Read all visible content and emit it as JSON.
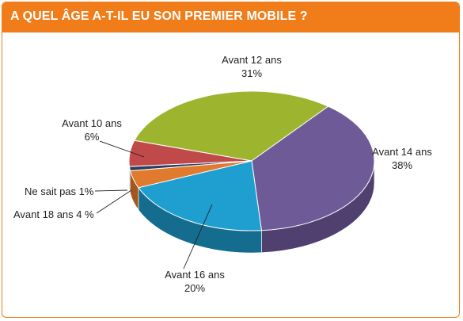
{
  "header": {
    "title": "A QUEL ÂGE A-T-IL EU SON PREMIER MOBILE  ?"
  },
  "colors": {
    "accent": "#f07d1a",
    "border": "#f07d1a"
  },
  "chart_data": {
    "type": "pie",
    "title": "A QUEL ÂGE A-T-IL EU SON PREMIER MOBILE  ?",
    "slices": [
      {
        "label": "Avant 12 ans",
        "value": 31,
        "value_text": "31%",
        "color": "#9db52e",
        "side": "#77891e"
      },
      {
        "label": "Avant 14 ans",
        "value": 38,
        "value_text": "38%",
        "color": "#6d5a97",
        "side": "#4f4070"
      },
      {
        "label": "Avant 16 ans",
        "value": 20,
        "value_text": "20%",
        "color": "#1e9fd0",
        "side": "#146d8f"
      },
      {
        "label": "Avant 18 ans",
        "value": 4,
        "value_text": "4 %",
        "color": "#e07a2e",
        "side": "#a4561c"
      },
      {
        "label": "Ne sait pas",
        "value": 1,
        "value_text": "1%",
        "color": "#2e3e60",
        "side": "#1c2840"
      },
      {
        "label": "Avant 10 ans",
        "value": 6,
        "value_text": "6%",
        "color": "#c04a4a",
        "side": "#8a3131"
      }
    ]
  }
}
